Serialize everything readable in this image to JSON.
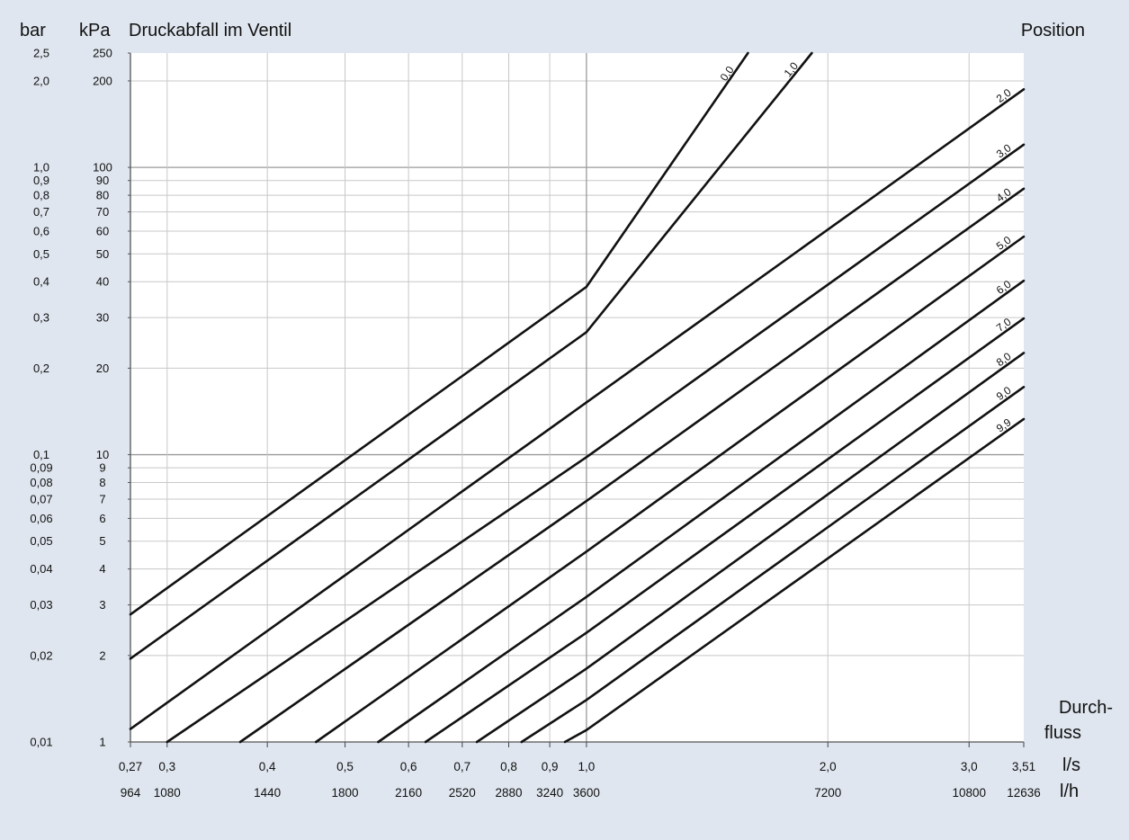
{
  "chart_data": {
    "type": "line",
    "title": "Druckabfall im Ventil",
    "y_units": [
      "bar",
      "kPa"
    ],
    "position_header": "Position",
    "flow_label": [
      "Durch-",
      "fluss"
    ],
    "x_unit_ls": "l/s",
    "x_unit_lh": "l/h",
    "x_scale": "log",
    "y_scale": "log",
    "xlim_ls": [
      0.27,
      3.51
    ],
    "ylim_kpa": [
      1,
      250
    ],
    "x_ticks_ls": [
      {
        "v": 0.27,
        "label": "0,27"
      },
      {
        "v": 0.3,
        "label": "0,3"
      },
      {
        "v": 0.4,
        "label": "0,4"
      },
      {
        "v": 0.5,
        "label": "0,5"
      },
      {
        "v": 0.6,
        "label": "0,6"
      },
      {
        "v": 0.7,
        "label": "0,7"
      },
      {
        "v": 0.8,
        "label": "0,8"
      },
      {
        "v": 0.9,
        "label": "0,9"
      },
      {
        "v": 1.0,
        "label": "1,0"
      },
      {
        "v": 2.0,
        "label": "2,0"
      },
      {
        "v": 3.0,
        "label": "3,0"
      },
      {
        "v": 3.51,
        "label": "3,51"
      }
    ],
    "x_ticks_lh": [
      {
        "v": 0.2678,
        "label": "964"
      },
      {
        "v": 0.3,
        "label": "1080"
      },
      {
        "v": 0.4,
        "label": "1440"
      },
      {
        "v": 0.5,
        "label": "1800"
      },
      {
        "v": 0.6,
        "label": "2160"
      },
      {
        "v": 0.7,
        "label": "2520"
      },
      {
        "v": 0.8,
        "label": "2880"
      },
      {
        "v": 0.9,
        "label": "3240"
      },
      {
        "v": 1.0,
        "label": "3600"
      },
      {
        "v": 2.0,
        "label": "7200"
      },
      {
        "v": 3.0,
        "label": "10800"
      },
      {
        "v": 3.51,
        "label": "12636"
      }
    ],
    "y_ticks": [
      {
        "kpa": 250,
        "kpa_label": "250",
        "bar_label": "2,5"
      },
      {
        "kpa": 200,
        "kpa_label": "200",
        "bar_label": "2,0"
      },
      {
        "kpa": 100,
        "kpa_label": "100",
        "bar_label": "1,0"
      },
      {
        "kpa": 90,
        "kpa_label": "90",
        "bar_label": "0,9"
      },
      {
        "kpa": 80,
        "kpa_label": "80",
        "bar_label": "0,8"
      },
      {
        "kpa": 70,
        "kpa_label": "70",
        "bar_label": "0,7"
      },
      {
        "kpa": 60,
        "kpa_label": "60",
        "bar_label": "0,6"
      },
      {
        "kpa": 50,
        "kpa_label": "50",
        "bar_label": "0,5"
      },
      {
        "kpa": 40,
        "kpa_label": "40",
        "bar_label": "0,4"
      },
      {
        "kpa": 30,
        "kpa_label": "30",
        "bar_label": "0,3"
      },
      {
        "kpa": 20,
        "kpa_label": "20",
        "bar_label": "0,2"
      },
      {
        "kpa": 10,
        "kpa_label": "10",
        "bar_label": "0,1"
      },
      {
        "kpa": 9,
        "kpa_label": "9",
        "bar_label": "0,09"
      },
      {
        "kpa": 8,
        "kpa_label": "8",
        "bar_label": "0,08"
      },
      {
        "kpa": 7,
        "kpa_label": "7",
        "bar_label": "0,07"
      },
      {
        "kpa": 6,
        "kpa_label": "6",
        "bar_label": "0,06"
      },
      {
        "kpa": 5,
        "kpa_label": "5",
        "bar_label": "0,05"
      },
      {
        "kpa": 4,
        "kpa_label": "4",
        "bar_label": "0,04"
      },
      {
        "kpa": 3,
        "kpa_label": "3",
        "bar_label": "0,03"
      },
      {
        "kpa": 2,
        "kpa_label": "2",
        "bar_label": "0,02"
      },
      {
        "kpa": 1,
        "kpa_label": "1",
        "bar_label": "0,01"
      }
    ],
    "grid": true,
    "series": [
      {
        "name": "0,0",
        "points": [
          [
            0.27,
            2.78
          ],
          [
            1.0,
            38.4
          ],
          [
            1.59,
            250
          ]
        ]
      },
      {
        "name": "1,0",
        "points": [
          [
            0.27,
            1.95
          ],
          [
            1.0,
            26.7
          ],
          [
            1.91,
            250
          ]
        ]
      },
      {
        "name": "2,0",
        "points": [
          [
            0.27,
            1.11
          ],
          [
            1.0,
            15.2
          ],
          [
            3.51,
            187
          ]
        ]
      },
      {
        "name": "3,0",
        "points": [
          [
            0.3,
            1.0
          ],
          [
            1.0,
            9.8
          ],
          [
            3.51,
            120
          ]
        ]
      },
      {
        "name": "4,0",
        "points": [
          [
            0.37,
            1.0
          ],
          [
            1.0,
            6.9
          ],
          [
            3.51,
            84.3
          ]
        ]
      },
      {
        "name": "5,0",
        "points": [
          [
            0.46,
            1.0
          ],
          [
            1.0,
            4.6
          ],
          [
            3.51,
            57.4
          ]
        ]
      },
      {
        "name": "6,0",
        "points": [
          [
            0.55,
            1.0
          ],
          [
            1.0,
            3.2
          ],
          [
            3.51,
            40.3
          ]
        ]
      },
      {
        "name": "7,0",
        "points": [
          [
            0.63,
            1.0
          ],
          [
            1.0,
            2.4
          ],
          [
            3.51,
            29.8
          ]
        ]
      },
      {
        "name": "8,0",
        "points": [
          [
            0.73,
            1.0
          ],
          [
            1.0,
            1.8
          ],
          [
            3.51,
            22.6
          ]
        ]
      },
      {
        "name": "9,0",
        "points": [
          [
            0.83,
            1.0
          ],
          [
            1.0,
            1.4
          ],
          [
            3.51,
            17.2
          ]
        ]
      },
      {
        "name": "9,9",
        "points": [
          [
            0.94,
            1.0
          ],
          [
            1.0,
            1.1
          ],
          [
            3.51,
            13.3
          ]
        ]
      }
    ]
  }
}
